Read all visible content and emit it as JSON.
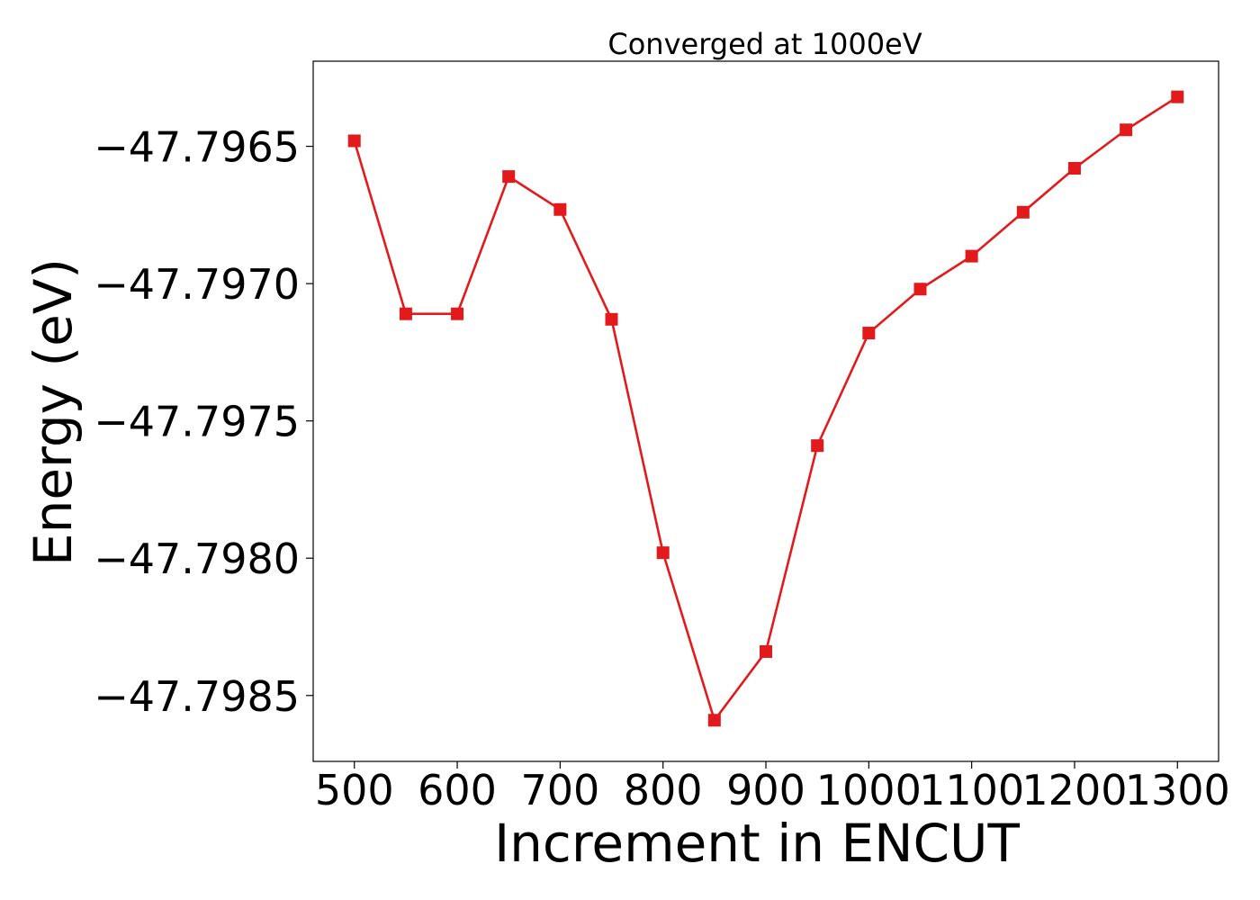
{
  "chart_data": {
    "type": "line",
    "title": "Converged at 1000eV",
    "xlabel": "Increment in ENCUT",
    "ylabel": "Energy (eV)",
    "x": [
      500,
      550,
      600,
      650,
      700,
      750,
      800,
      850,
      900,
      950,
      1000,
      1050,
      1100,
      1150,
      1200,
      1250,
      1300
    ],
    "series": [
      {
        "values": [
          -47.79648,
          -47.79711,
          -47.79711,
          -47.79661,
          -47.79673,
          -47.79713,
          -47.79798,
          -47.79859,
          -47.79834,
          -47.79759,
          -47.79718,
          -47.79702,
          -47.7969,
          -47.79674,
          -47.79658,
          -47.79644,
          -47.79632
        ],
        "color": "#e31a1c",
        "marker": "square"
      }
    ],
    "xticks": [
      500,
      600,
      700,
      800,
      900,
      1000,
      1100,
      1200,
      1300
    ],
    "xtick_labels": [
      "500",
      "600",
      "700",
      "800",
      "900",
      "1000",
      "1100",
      "1200",
      "1300"
    ],
    "yticks": [
      -47.7965,
      -47.797,
      -47.7975,
      -47.798,
      -47.7985
    ],
    "ytick_labels": [
      "−47.7965",
      "−47.7970",
      "−47.7975",
      "−47.7980",
      "−47.7985"
    ],
    "xlim": [
      460,
      1340
    ],
    "ylim": [
      -47.79874,
      -47.79619
    ],
    "grid": false,
    "legend": "none"
  }
}
